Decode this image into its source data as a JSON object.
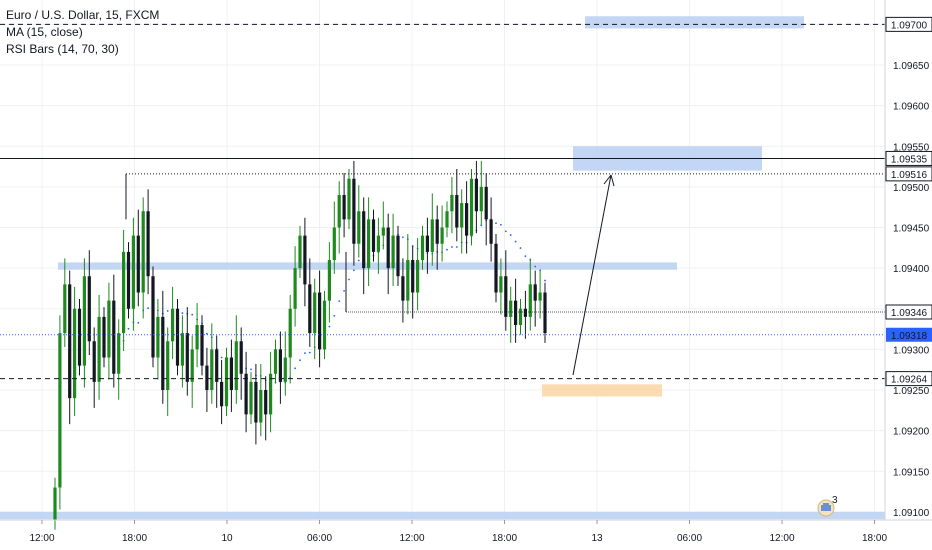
{
  "legend": {
    "symbol": "Euro / U.S. Dollar, 15, FXCM",
    "ma": "MA (15, close)",
    "rsi": "RSI Bars (14, 70, 30)"
  },
  "badge": {
    "count": "3"
  },
  "colors": {
    "up": "#1e8a1e",
    "down": "#131722",
    "blue_zone": "#bcd1f2",
    "orange_zone": "#fbd7a8",
    "ma_dots": "#2962ff",
    "current_price": "#2962ff",
    "grid": "#eef0f3"
  },
  "chart_data": {
    "type": "candlestick",
    "title": "Euro / U.S. Dollar, 15, FXCM",
    "indicators": [
      "MA (15, close)",
      "RSI Bars (14, 70, 30)"
    ],
    "y_range": [
      1.0909,
      1.0973
    ],
    "y_ticks": [
      "1.09700",
      "1.09650",
      "1.09600",
      "1.09550",
      "1.09500",
      "1.09450",
      "1.09400",
      "1.09350",
      "1.09300",
      "1.09250",
      "1.09200",
      "1.09150",
      "1.09100"
    ],
    "x_ticks": [
      "12:00",
      "18:00",
      "10",
      "06:00",
      "12:00",
      "18:00",
      "13",
      "06:00",
      "12:00",
      "18:00"
    ],
    "grid": true,
    "price_labels": [
      {
        "value": "1.09700",
        "style": "dashed"
      },
      {
        "value": "1.09535",
        "style": "solid"
      },
      {
        "value": "1.09516",
        "style": "dotted"
      },
      {
        "value": "1.09346",
        "style": "none"
      },
      {
        "value": "1.09318",
        "style": "current"
      },
      {
        "value": "1.09264",
        "style": "dashed"
      }
    ],
    "closes": [
      1.0913,
      1.0932,
      1.0938,
      1.0924,
      1.0935,
      1.0928,
      1.0939,
      1.0931,
      1.0926,
      1.0934,
      1.0929,
      1.0936,
      1.0927,
      1.0932,
      1.0942,
      1.0935,
      1.0944,
      1.0937,
      1.0947,
      1.0939,
      1.0929,
      1.0934,
      1.0925,
      1.0931,
      1.0935,
      1.0928,
      1.0932,
      1.0926,
      1.093,
      1.0933,
      1.0928,
      1.0925,
      1.093,
      1.0926,
      1.0923,
      1.0929,
      1.0925,
      1.0931,
      1.0927,
      1.0922,
      1.0926,
      1.0921,
      1.0925,
      1.0922,
      1.0927,
      1.093,
      1.0926,
      1.0929,
      1.0935,
      1.094,
      1.0944,
      1.0938,
      1.0932,
      1.0937,
      1.093,
      1.0936,
      1.0941,
      1.0945,
      1.0949,
      1.0946,
      1.0951,
      1.0943,
      1.0947,
      1.094,
      1.0946,
      1.0942,
      1.0944,
      1.0945,
      1.094,
      1.0944,
      1.0939,
      1.0936,
      1.0941,
      1.0937,
      1.0941,
      1.0944,
      1.0942,
      1.0946,
      1.0943,
      1.0945,
      1.0947,
      1.0949,
      1.0945,
      1.0948,
      1.0944,
      1.0951,
      1.0947,
      1.095,
      1.0946,
      1.0943,
      1.0937,
      1.0939,
      1.0934,
      1.0936,
      1.0933,
      1.0935,
      1.0934,
      1.0938,
      1.0936,
      1.0937,
      1.0932
    ],
    "zones": [
      {
        "from": 1.09695,
        "to": 1.0971,
        "color": "blue"
      },
      {
        "from": 1.0952,
        "to": 1.0955,
        "color": "blue"
      },
      {
        "from": 1.09398,
        "to": 1.09407,
        "color": "blue"
      },
      {
        "from": 1.09242,
        "to": 1.09257,
        "color": "orange"
      },
      {
        "from": 1.09091,
        "to": 1.091,
        "color": "blue"
      }
    ]
  }
}
